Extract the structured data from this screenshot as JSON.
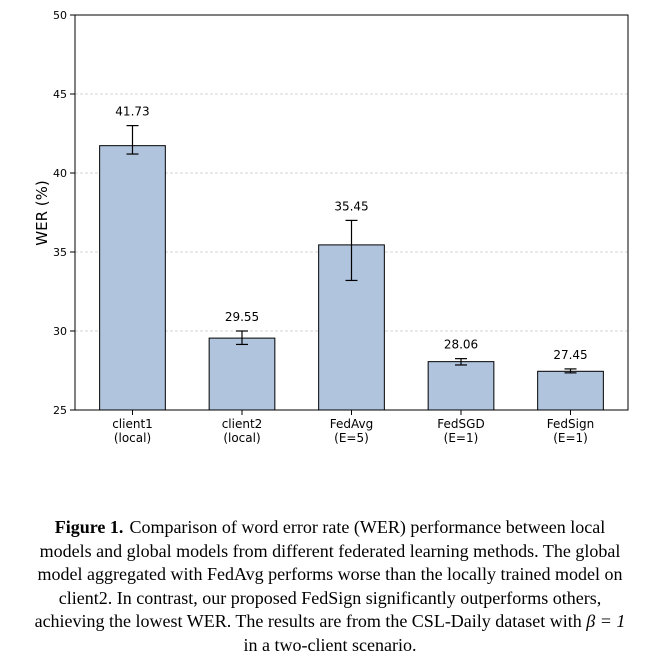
{
  "chart_data": {
    "type": "bar",
    "categories": [
      [
        "client1",
        "(local)"
      ],
      [
        "client2",
        "(local)"
      ],
      [
        "FedAvg",
        "(E=5)"
      ],
      [
        "FedSGD",
        "(E=1)"
      ],
      [
        "FedSign",
        "(E=1)"
      ]
    ],
    "values": [
      41.73,
      29.55,
      35.45,
      28.06,
      27.45
    ],
    "data_labels": [
      "41.73",
      "29.55",
      "35.45",
      "28.06",
      "27.45"
    ],
    "error_bars": [
      {
        "low": 41.2,
        "high": 43.0
      },
      {
        "low": 29.15,
        "high": 30.0
      },
      {
        "low": 33.2,
        "high": 37.0
      },
      {
        "low": 27.85,
        "high": 28.25
      },
      {
        "low": 27.35,
        "high": 27.6
      }
    ],
    "ylabel": "WER (%)",
    "xlabel": "",
    "ylim": [
      25,
      50
    ],
    "yticks": [
      25,
      30,
      35,
      40,
      45,
      50
    ],
    "grid": "horizontal dashed",
    "bar_color": "#b0c4de",
    "bar_edge_color": "#000000"
  },
  "caption": {
    "label": "Figure 1.",
    "text_before_math": "Comparison of word error rate (WER) performance between local models and global models from different federated learning methods. The global model aggregated with FedAvg performs worse than the locally trained model on client2. In contrast, our proposed FedSign significantly outperforms others, achieving the lowest WER. The results are from the CSL-Daily dataset with ",
    "math": "β = 1",
    "text_after_math": " in a two-client scenario."
  }
}
